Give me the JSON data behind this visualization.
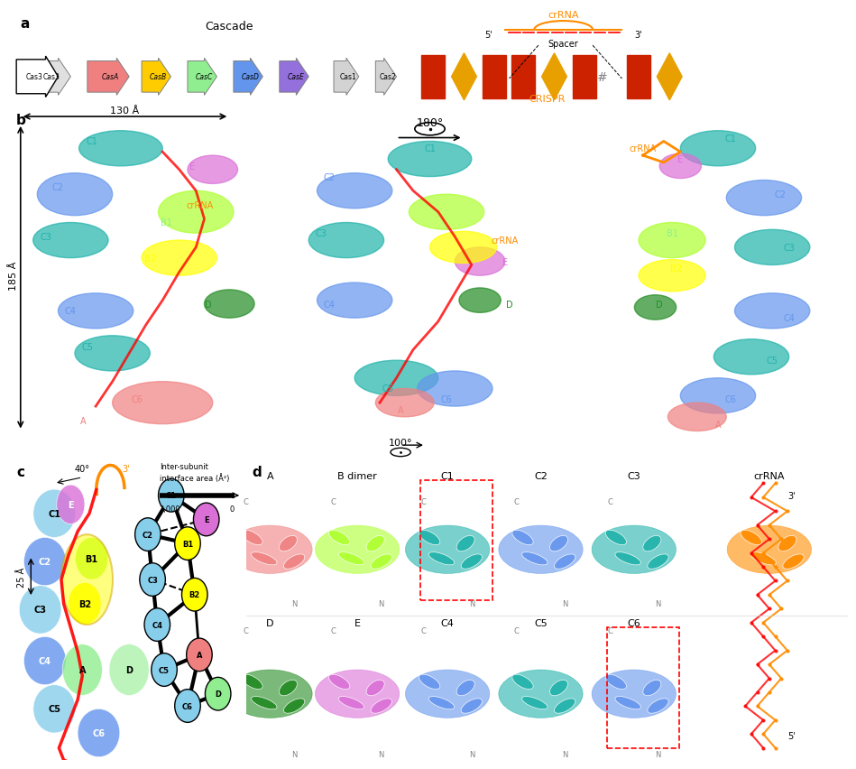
{
  "title_a": "a",
  "title_b": "b",
  "title_c": "c",
  "title_d": "d",
  "cascade_label": "Cascade",
  "crRNA_label": "crRNA",
  "spacer_label": "Spacer",
  "crispr_label": "CRISPR",
  "genes": [
    "Cas3",
    "CasA",
    "CasB",
    "CasC",
    "CasD",
    "CasE",
    "Cas1",
    "Cas2"
  ],
  "gene_colors": [
    "#e0e0e0",
    "#f08080",
    "#ffcc00",
    "#90ee90",
    "#6495ed",
    "#9370db",
    "#d3d3d3",
    "#d3d3d3"
  ],
  "dim_130": "130 Å",
  "dim_185": "185 Å",
  "dim_25": "25 Å",
  "angle_40": "40°",
  "angle_180": "180°",
  "angle_100": "100°",
  "intersubunit_label": "Inter-subunit\ninterface area (Å²)",
  "scale_label": "2,000",
  "scale_label2": "0",
  "subunit_labels_c": [
    "C1",
    "C2",
    "C3",
    "C4",
    "C5",
    "C6",
    "B1",
    "B2",
    "E",
    "A",
    "D"
  ],
  "subunit_labels_d": [
    "A",
    "B dimer",
    "C1",
    "C2",
    "C3",
    "crRNA",
    "D",
    "E",
    "C4",
    "C5",
    "C6"
  ],
  "network_nodes": [
    "C1",
    "C2",
    "C3",
    "C4",
    "C5",
    "C6",
    "B1",
    "B2",
    "A",
    "D",
    "E"
  ],
  "node_colors": {
    "C1": "#87ceeb",
    "C2": "#87ceeb",
    "C3": "#87ceeb",
    "C4": "#87ceeb",
    "C5": "#87ceeb",
    "C6": "#87ceeb",
    "B1": "#ffff00",
    "B2": "#ffff00",
    "A": "#f08080",
    "D": "#90ee90",
    "E": "#da70d6"
  },
  "background_color": "#ffffff"
}
